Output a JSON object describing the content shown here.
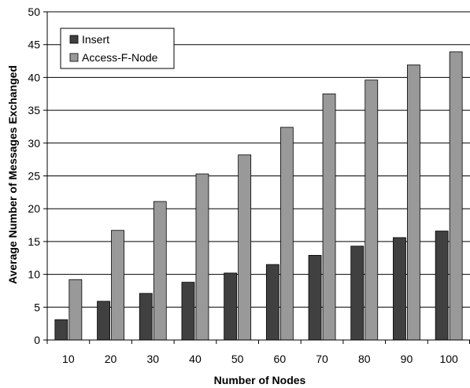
{
  "chart_data": {
    "type": "bar",
    "title": "",
    "xlabel": "Number of Nodes",
    "ylabel": "Average Number of Messages Exchanged",
    "categories": [
      "10",
      "20",
      "30",
      "40",
      "50",
      "60",
      "70",
      "80",
      "90",
      "100"
    ],
    "series": [
      {
        "name": "Insert",
        "color": "#404040",
        "values": [
          3.1,
          5.9,
          7.1,
          8.8,
          10.2,
          11.5,
          12.9,
          14.3,
          15.6,
          16.6
        ]
      },
      {
        "name": "Access-F-Node",
        "color": "#999999",
        "values": [
          9.2,
          16.7,
          21.1,
          25.3,
          28.2,
          32.4,
          37.5,
          39.6,
          41.9,
          43.9
        ]
      }
    ],
    "ylim": [
      0,
      50
    ],
    "yticks": [
      0,
      5,
      10,
      15,
      20,
      25,
      30,
      35,
      40,
      45,
      50
    ],
    "grid": true,
    "legend": "top-left"
  }
}
